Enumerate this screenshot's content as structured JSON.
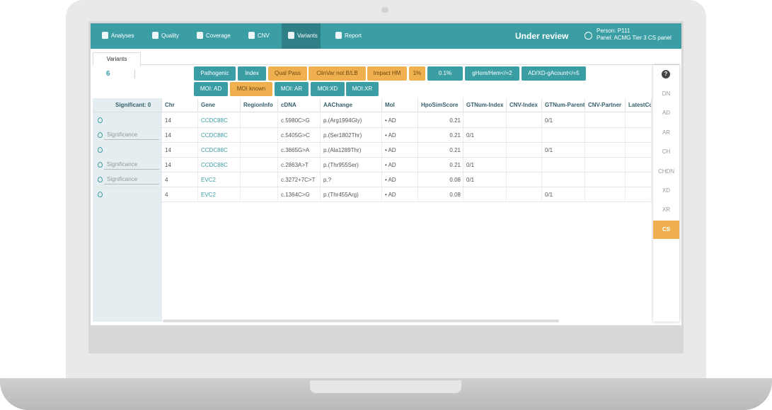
{
  "nav": {
    "items": [
      "Analyses",
      "Quality",
      "Coverage",
      "CNV",
      "Variants",
      "Report"
    ],
    "status": "Under review",
    "person": "Person: P111",
    "panel": "Panel: ACMG Tier 3 CS panel"
  },
  "tab": "Variants",
  "toolbar": {
    "count": "6",
    "filters_row1": [
      "Pathogenic",
      "Index",
      "Qual Pass",
      "ClinVar not B/LB",
      "Impact HM",
      "1%",
      "0.1%",
      "gHom/Hem</=2",
      "AD/XD-gAcount</=5"
    ],
    "filters_row2": [
      "MOI: AD",
      "MOI known",
      "MOI: AR",
      "MOI:XD",
      "MOI:XR"
    ]
  },
  "table": {
    "headers": [
      "Significant: 0",
      "Chr",
      "Gene",
      "RegionInfo",
      "cDNA",
      "AAChange",
      "MoI",
      "HpoSimScore",
      "GTNum-Index",
      "CNV-Index",
      "GTNum-Parent",
      "CNV-Partner",
      "LatestCom"
    ],
    "rows": [
      {
        "chr": "14",
        "gene": "CCDC88C",
        "cdna": "c.5980C>G",
        "aachange": "p.(Arg1994Gly)",
        "moi": "• AD",
        "hpo": 0.21,
        "gtparent": "0/1"
      },
      {
        "significance": "Significance",
        "chr": "14",
        "gene": "CCDC88C",
        "cdna": "c.5405G>C",
        "aachange": "p.(Ser1802Thr)",
        "moi": "• AD",
        "hpo": 0.21,
        "gtindex": "0/1"
      },
      {
        "chr": "14",
        "gene": "CCDC88C",
        "cdna": "c.3865G>A",
        "aachange": "p.(Ala1289Thr)",
        "moi": "• AD",
        "hpo": 0.21,
        "gtparent": "0/1"
      },
      {
        "significance": "Significance",
        "chr": "14",
        "gene": "CCDC88C",
        "cdna": "c.2863A>T",
        "aachange": "p.(Thr955Ser)",
        "moi": "• AD",
        "hpo": 0.21,
        "gtindex": "0/1"
      },
      {
        "significance": "Significance",
        "chr": "4",
        "gene": "EVC2",
        "cdna": "c.3272+7C>T",
        "aachange": "p.?",
        "moi": "• AD",
        "hpo": 0.08,
        "gtindex": "0/1"
      },
      {
        "chr": "4",
        "gene": "EVC2",
        "cdna": "c.1364C>G",
        "aachange": "p.(Thr455Arg)",
        "moi": "• AD",
        "hpo": 0.08,
        "gtparent": "0/1"
      }
    ]
  },
  "sidebar": {
    "help": "?",
    "items": [
      "DN",
      "AD",
      "AR",
      "CH",
      "CHDN",
      "XD",
      "XR",
      "CS"
    ]
  }
}
